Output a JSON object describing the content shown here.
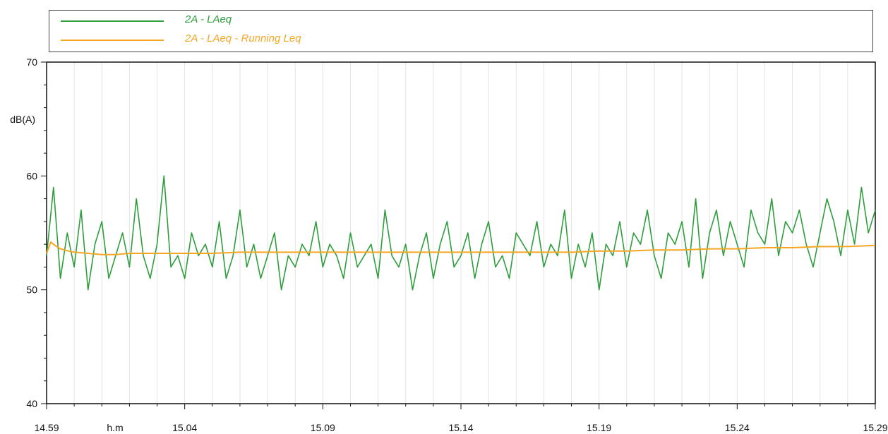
{
  "legend": {
    "items": [
      {
        "label": "2A - LAeq",
        "color": "#2e9e3c"
      },
      {
        "label": "2A - LAeq - Running Leq",
        "color": "#f5a623"
      }
    ]
  },
  "chart_data": {
    "type": "line",
    "title": "",
    "xlabel": "h.m",
    "ylabel": "dB(A)",
    "ylim": [
      40,
      70
    ],
    "y_ticks": [
      "40",
      "50",
      "60",
      "70"
    ],
    "x_range_minutes": [
      0,
      30
    ],
    "x_ticks": [
      {
        "minute": 0,
        "label": "14.59"
      },
      {
        "minute": 5,
        "label": "15.04"
      },
      {
        "minute": 10,
        "label": "15.09"
      },
      {
        "minute": 15,
        "label": "15.14"
      },
      {
        "minute": 20,
        "label": "15.19"
      },
      {
        "minute": 25,
        "label": "15.24"
      },
      {
        "minute": 30,
        "label": "15.29"
      }
    ],
    "grid": "vertical",
    "legend_position": "top",
    "series": [
      {
        "name": "2A - LAeq",
        "color": "#2e9e3c",
        "x": [
          0,
          0.25,
          0.5,
          0.75,
          1,
          1.25,
          1.5,
          1.75,
          2,
          2.25,
          2.5,
          2.75,
          3,
          3.25,
          3.5,
          3.75,
          4,
          4.25,
          4.5,
          4.75,
          5,
          5.25,
          5.5,
          5.75,
          6,
          6.25,
          6.5,
          6.75,
          7,
          7.25,
          7.5,
          7.75,
          8,
          8.25,
          8.5,
          8.75,
          9,
          9.25,
          9.5,
          9.75,
          10,
          10.25,
          10.5,
          10.75,
          11,
          11.25,
          11.5,
          11.75,
          12,
          12.25,
          12.5,
          12.75,
          13,
          13.25,
          13.5,
          13.75,
          14,
          14.25,
          14.5,
          14.75,
          15,
          15.25,
          15.5,
          15.75,
          16,
          16.25,
          16.5,
          16.75,
          17,
          17.25,
          17.5,
          17.75,
          18,
          18.25,
          18.5,
          18.75,
          19,
          19.25,
          19.5,
          19.75,
          20,
          20.25,
          20.5,
          20.75,
          21,
          21.25,
          21.5,
          21.75,
          22,
          22.25,
          22.5,
          22.75,
          23,
          23.25,
          23.5,
          23.75,
          24,
          24.25,
          24.5,
          24.75,
          25,
          25.25,
          25.5,
          25.75,
          26,
          26.25,
          26.5,
          26.75,
          27,
          27.25,
          27.5,
          27.75,
          28,
          28.25,
          28.5,
          28.75,
          29,
          29.25,
          29.5,
          29.75,
          30
        ],
        "y": [
          53,
          59,
          51,
          55,
          52,
          57,
          50,
          54,
          56,
          51,
          53,
          55,
          52,
          58,
          53,
          51,
          54,
          60,
          52,
          53,
          51,
          55,
          53,
          54,
          52,
          56,
          51,
          53,
          57,
          52,
          54,
          51,
          53,
          55,
          50,
          53,
          52,
          54,
          53,
          56,
          52,
          54,
          53,
          51,
          55,
          52,
          53,
          54,
          51,
          57,
          53,
          52,
          54,
          50,
          53,
          55,
          51,
          54,
          56,
          52,
          53,
          55,
          51,
          54,
          56,
          52,
          53,
          51,
          55,
          54,
          53,
          56,
          52,
          54,
          53,
          57,
          51,
          54,
          52,
          55,
          50,
          54,
          53,
          56,
          52,
          55,
          54,
          57,
          53,
          51,
          55,
          54,
          56,
          52,
          58,
          51,
          55,
          57,
          53,
          56,
          54,
          52,
          57,
          55,
          54,
          58,
          53,
          56,
          55,
          57,
          54,
          52,
          55,
          58,
          56,
          53,
          57,
          54,
          59,
          55,
          57
        ]
      },
      {
        "name": "2A - LAeq - Running Leq",
        "color": "#f5a623",
        "x": [
          0,
          0.15,
          0.3,
          0.5,
          0.8,
          1,
          1.5,
          2,
          2.5,
          3,
          4,
          5,
          6,
          7,
          8,
          9,
          10,
          11,
          12,
          13,
          14,
          15,
          16,
          17,
          18,
          19,
          20,
          21,
          22,
          23,
          24,
          25,
          26,
          27,
          28,
          29,
          30
        ],
        "y": [
          53.2,
          54.2,
          53.9,
          53.6,
          53.4,
          53.3,
          53.2,
          53.1,
          53.1,
          53.2,
          53.2,
          53.2,
          53.2,
          53.3,
          53.3,
          53.3,
          53.3,
          53.3,
          53.3,
          53.3,
          53.3,
          53.3,
          53.3,
          53.3,
          53.3,
          53.3,
          53.4,
          53.4,
          53.5,
          53.5,
          53.6,
          53.6,
          53.7,
          53.7,
          53.8,
          53.8,
          53.9
        ]
      }
    ]
  }
}
